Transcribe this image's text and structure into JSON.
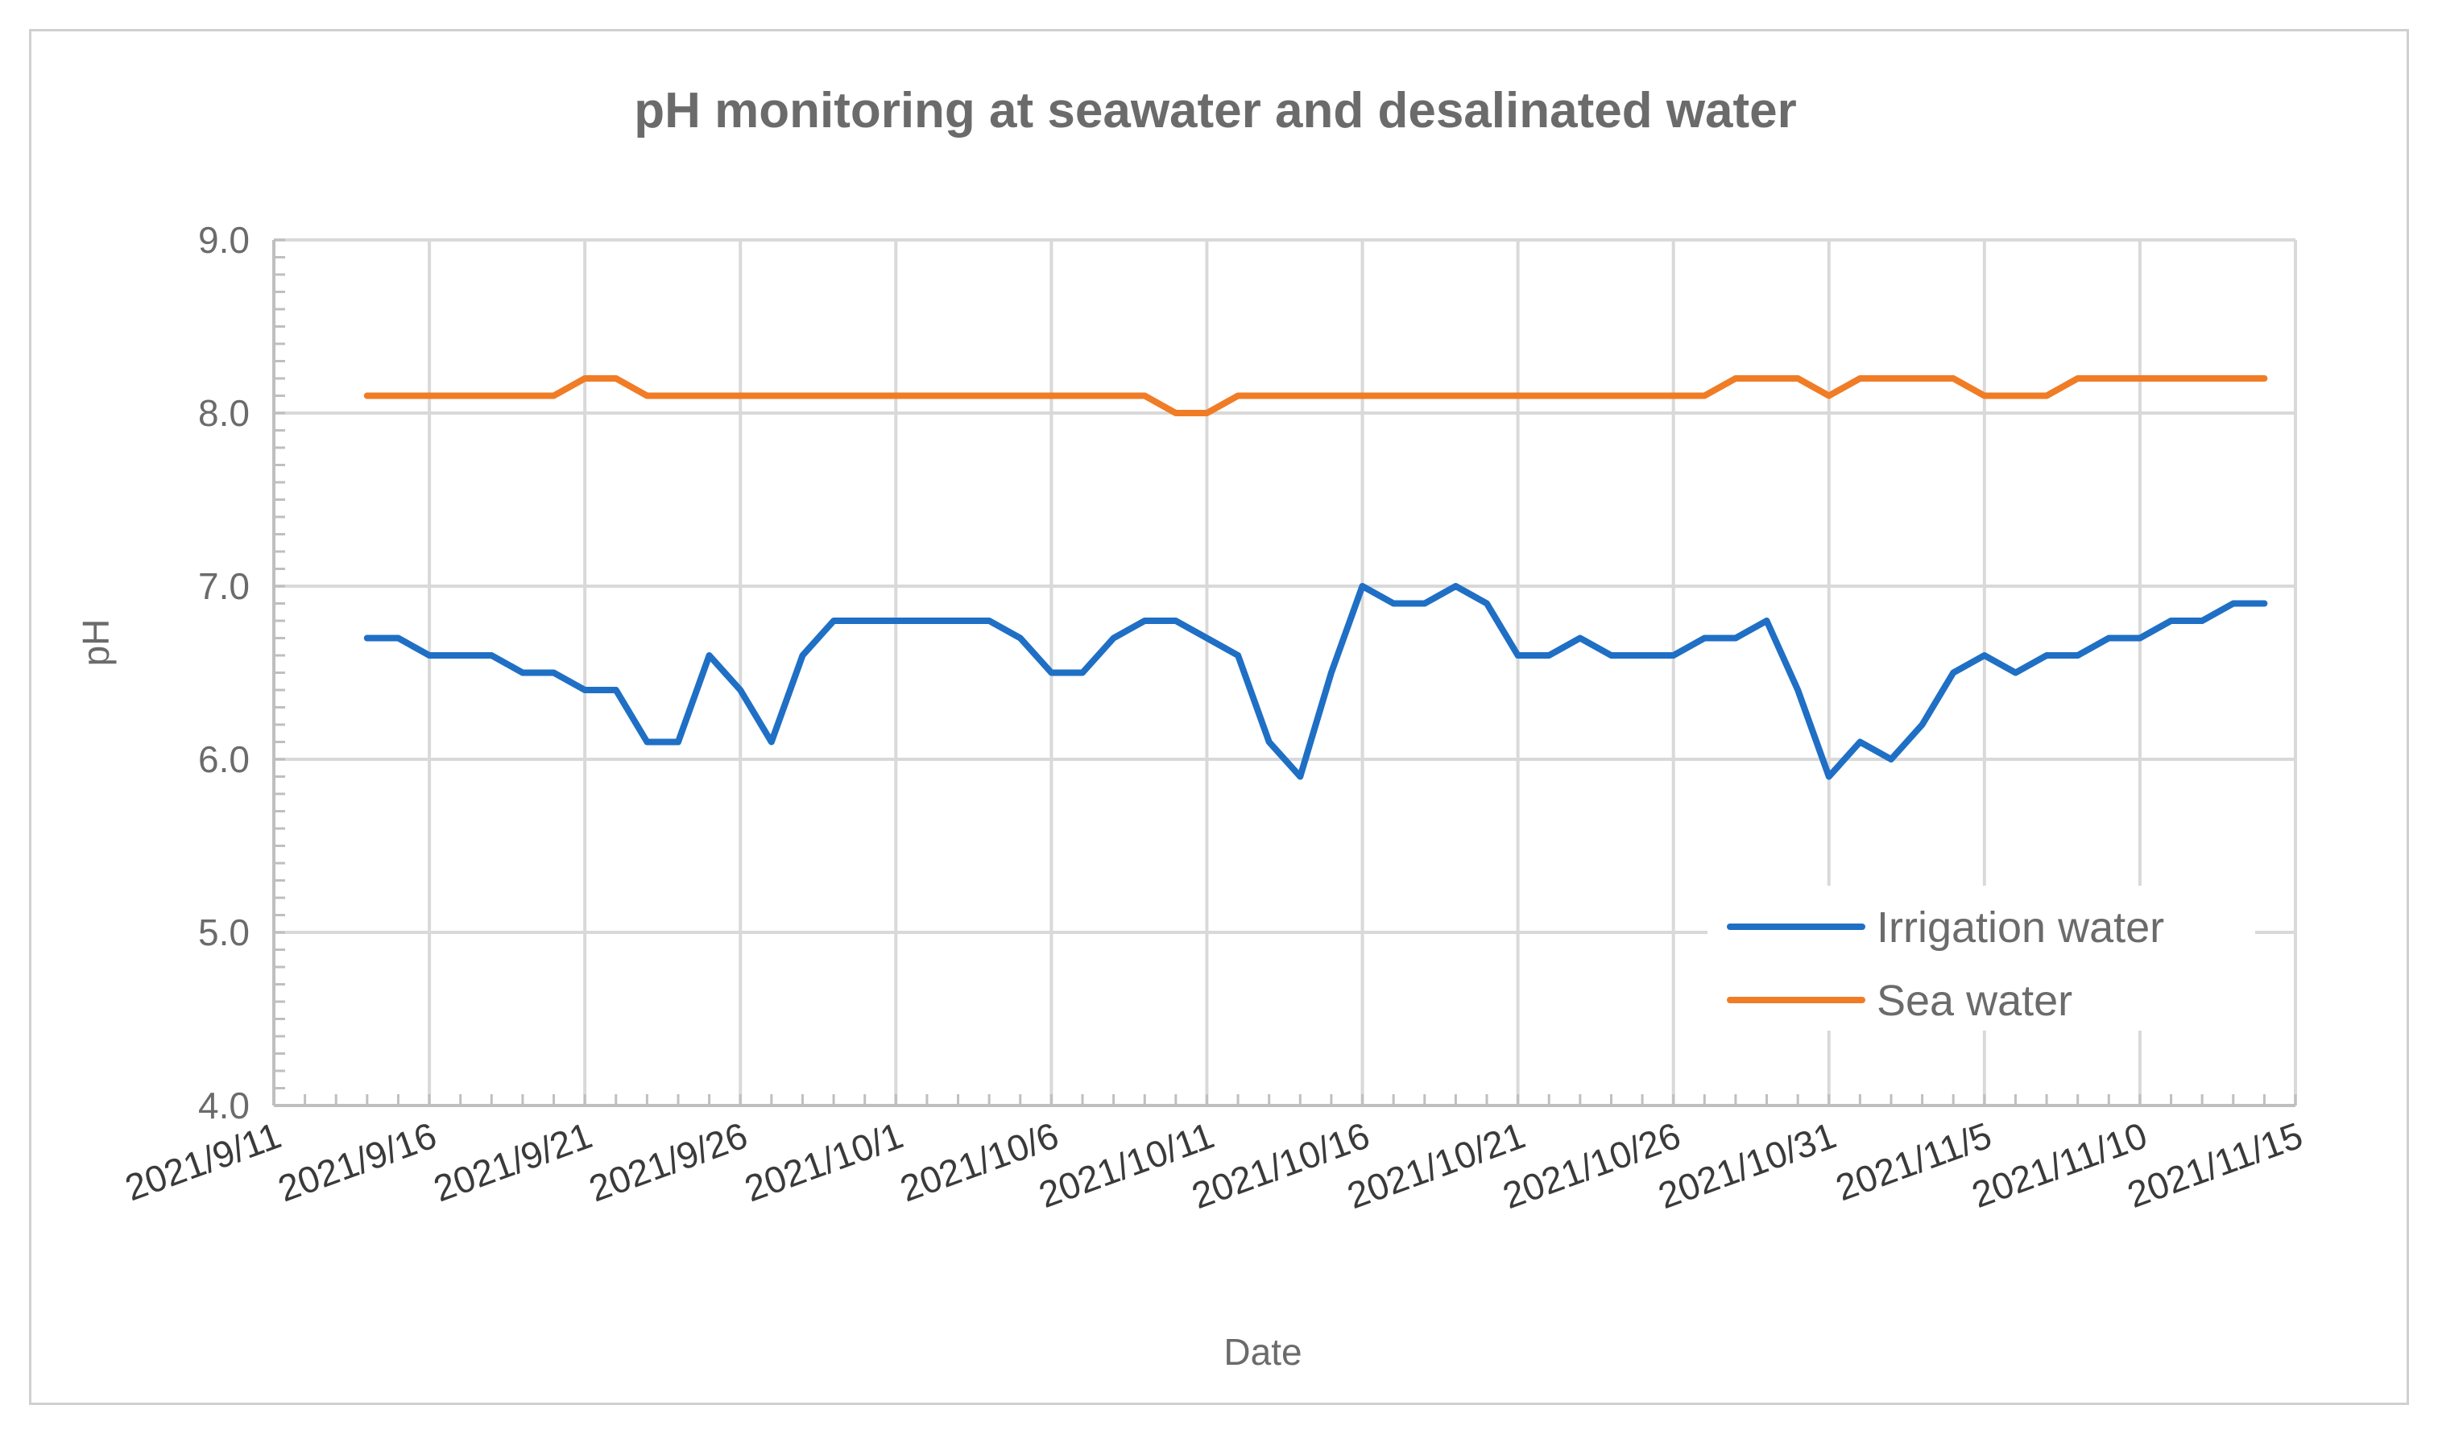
{
  "chart_data": {
    "type": "line",
    "title": "pH monitoring at seawater and desalinated water",
    "xlabel": "Date",
    "ylabel": "pH",
    "ylim": [
      4.0,
      9.0
    ],
    "yticks": [
      "4.0",
      "5.0",
      "6.0",
      "7.0",
      "8.0",
      "9.0"
    ],
    "x_start": "2021/9/11",
    "x_end": "2021/11/15",
    "xticks": [
      "2021/9/11",
      "2021/9/16",
      "2021/9/21",
      "2021/9/26",
      "2021/10/1",
      "2021/10/6",
      "2021/10/11",
      "2021/10/16",
      "2021/10/21",
      "2021/10/26",
      "2021/10/31",
      "2021/11/5",
      "2021/11/10",
      "2021/11/15"
    ],
    "x_days": [
      3,
      4,
      5,
      6,
      7,
      8,
      9,
      10,
      11,
      12,
      13,
      14,
      15,
      16,
      17,
      18,
      19,
      20,
      21,
      22,
      23,
      24,
      25,
      26,
      27,
      28,
      29,
      30,
      31,
      32,
      33,
      34,
      35,
      36,
      37,
      38,
      39,
      40,
      41,
      42,
      43,
      44,
      45,
      46,
      47,
      48,
      49,
      50,
      51,
      52,
      53,
      54,
      55,
      56,
      57,
      58,
      59,
      60,
      61,
      62,
      63,
      64
    ],
    "grid": true,
    "legend_position": "bottom-right",
    "series": [
      {
        "name": "Irrigation water",
        "color": "#1f6fc5",
        "values": [
          6.7,
          6.7,
          6.6,
          6.6,
          6.6,
          6.5,
          6.5,
          6.4,
          6.4,
          6.1,
          6.1,
          6.6,
          6.4,
          6.1,
          6.6,
          6.8,
          6.8,
          6.8,
          6.8,
          6.8,
          6.8,
          6.7,
          6.5,
          6.5,
          6.7,
          6.8,
          6.8,
          6.7,
          6.6,
          6.1,
          5.9,
          6.5,
          7.0,
          6.9,
          6.9,
          7.0,
          6.9,
          6.6,
          6.6,
          6.7,
          6.6,
          6.6,
          6.6,
          6.7,
          6.7,
          6.8,
          6.4,
          5.9,
          6.1,
          6.0,
          6.2,
          6.5,
          6.6,
          6.5,
          6.6,
          6.6,
          6.7,
          6.7,
          6.8,
          6.8,
          6.9,
          6.9
        ]
      },
      {
        "name": "Sea water",
        "color": "#f07c26",
        "values": [
          8.1,
          8.1,
          8.1,
          8.1,
          8.1,
          8.1,
          8.1,
          8.2,
          8.2,
          8.1,
          8.1,
          8.1,
          8.1,
          8.1,
          8.1,
          8.1,
          8.1,
          8.1,
          8.1,
          8.1,
          8.1,
          8.1,
          8.1,
          8.1,
          8.1,
          8.1,
          8.0,
          8.0,
          8.1,
          8.1,
          8.1,
          8.1,
          8.1,
          8.1,
          8.1,
          8.1,
          8.1,
          8.1,
          8.1,
          8.1,
          8.1,
          8.1,
          8.1,
          8.1,
          8.2,
          8.2,
          8.2,
          8.1,
          8.2,
          8.2,
          8.2,
          8.2,
          8.1,
          8.1,
          8.1,
          8.2,
          8.2,
          8.2,
          8.2,
          8.2,
          8.2,
          8.2
        ]
      }
    ]
  }
}
